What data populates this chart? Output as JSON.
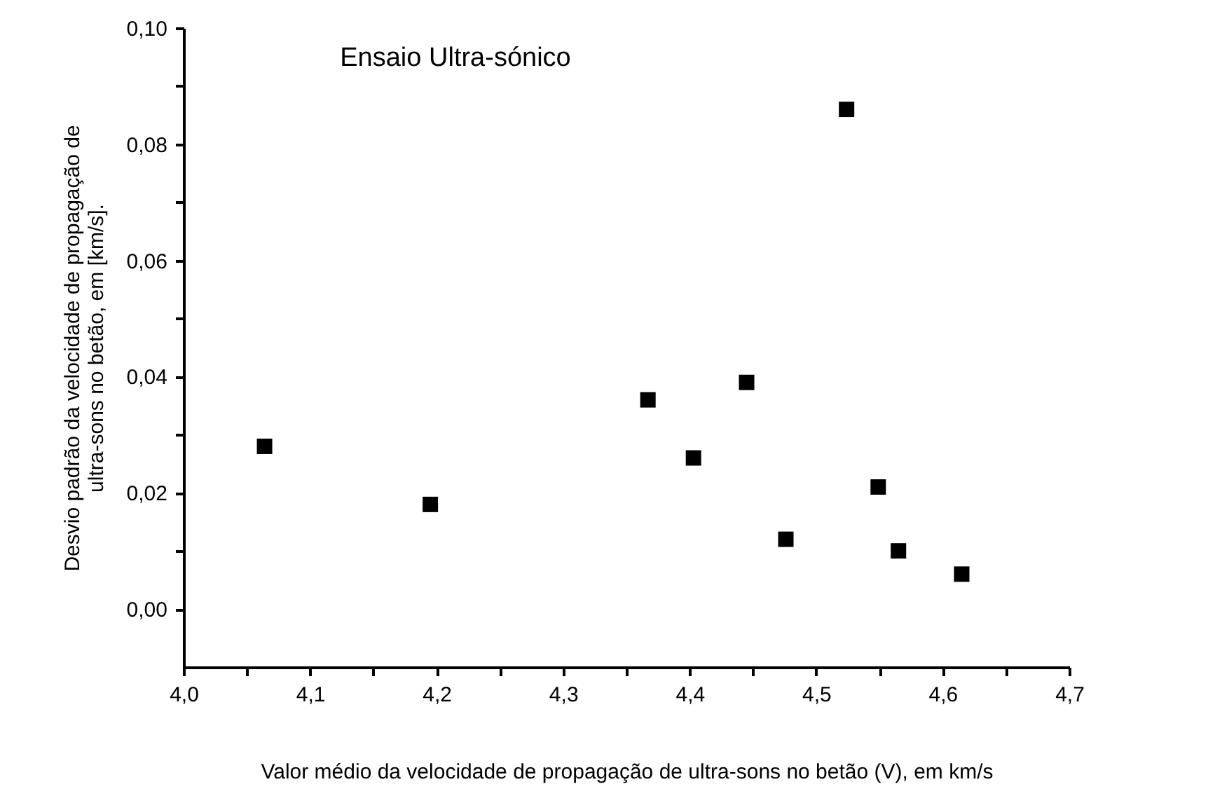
{
  "chart_data": {
    "type": "scatter",
    "annotations": [
      "Ensaio Ultra-sónico"
    ],
    "xlabel": "Valor médio da velocidade de propagação de ultra-sons no betão (V), em km/s",
    "ylabel": "Desvio padrão da velocidade de propagação de\nultra-sons no betão, em [km/s].",
    "x": [
      4.064,
      4.195,
      4.367,
      4.403,
      4.445,
      4.476,
      4.524,
      4.549,
      4.565,
      4.615
    ],
    "series": [
      {
        "color": "#000000",
        "values": [
          0.028,
          0.018,
          0.036,
          0.026,
          0.039,
          0.012,
          0.086,
          0.021,
          0.01,
          0.006
        ]
      }
    ],
    "marker": "square",
    "grid": false,
    "legend": false,
    "xlim": [
      4.0,
      4.7
    ],
    "xticks": [
      {
        "value": 4.0,
        "label": "4,0"
      },
      {
        "value": 4.05,
        "label": null
      },
      {
        "value": 4.1,
        "label": "4,1"
      },
      {
        "value": 4.15,
        "label": null
      },
      {
        "value": 4.2,
        "label": "4,2"
      },
      {
        "value": 4.25,
        "label": null
      },
      {
        "value": 4.3,
        "label": "4,3"
      },
      {
        "value": 4.35,
        "label": null
      },
      {
        "value": 4.4,
        "label": "4,4"
      },
      {
        "value": 4.45,
        "label": null
      },
      {
        "value": 4.5,
        "label": "4,5"
      },
      {
        "value": 4.55,
        "label": null
      },
      {
        "value": 4.6,
        "label": "4,6"
      },
      {
        "value": 4.65,
        "label": null
      },
      {
        "value": 4.7,
        "label": "4,7"
      }
    ],
    "ylim": [
      -0.01,
      0.1
    ],
    "yticks": [
      {
        "value": 0.0,
        "label": "0,00"
      },
      {
        "value": 0.01,
        "label": null
      },
      {
        "value": 0.02,
        "label": "0,02"
      },
      {
        "value": 0.03,
        "label": null
      },
      {
        "value": 0.04,
        "label": "0,04"
      },
      {
        "value": 0.05,
        "label": null
      },
      {
        "value": 0.06,
        "label": "0,06"
      },
      {
        "value": 0.07,
        "label": null
      },
      {
        "value": 0.08,
        "label": "0,08"
      },
      {
        "value": 0.09,
        "label": null
      },
      {
        "value": 0.1,
        "label": "0,10"
      }
    ]
  }
}
